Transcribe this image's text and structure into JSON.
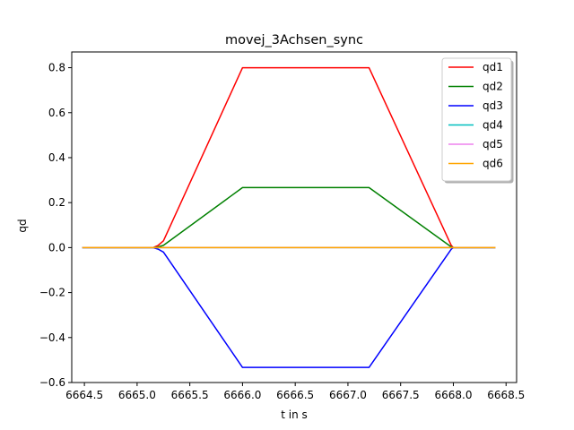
{
  "chart_data": {
    "type": "line",
    "title": "movej_3Achsen_sync",
    "xlabel": "t in s",
    "ylabel": "qd",
    "xlim": [
      6664.38,
      6668.6
    ],
    "ylim": [
      -0.6,
      0.87
    ],
    "xticks": [
      6664.5,
      6665.0,
      6665.5,
      6666.0,
      6666.5,
      6667.0,
      6667.5,
      6668.0,
      6668.5
    ],
    "xtick_labels": [
      "6664.5",
      "6665.0",
      "6665.5",
      "6666.0",
      "6666.5",
      "6667.0",
      "6667.5",
      "6668.0",
      "6668.5"
    ],
    "yticks": [
      -0.6,
      -0.4,
      -0.2,
      0.0,
      0.2,
      0.4,
      0.6,
      0.8
    ],
    "ytick_labels": [
      "−0.6",
      "−0.4",
      "−0.2",
      "0.0",
      "0.2",
      "0.4",
      "0.6",
      "0.8"
    ],
    "grid": false,
    "legend_position": "top-right",
    "series": [
      {
        "name": "qd1",
        "color": "#ff0000",
        "x": [
          6664.48,
          6665.15,
          6665.2,
          6665.25,
          6666.0,
          6667.2,
          6667.98,
          6668.0,
          6668.4
        ],
        "y": [
          0.0,
          0.0,
          0.01,
          0.03,
          0.8,
          0.8,
          0.01,
          0.0,
          0.0
        ]
      },
      {
        "name": "qd2",
        "color": "#008000",
        "x": [
          6664.48,
          6665.15,
          6665.2,
          6665.25,
          6666.0,
          6667.2,
          6667.98,
          6668.0,
          6668.4
        ],
        "y": [
          0.0,
          0.0,
          0.003,
          0.01,
          0.267,
          0.267,
          0.003,
          0.0,
          0.0
        ]
      },
      {
        "name": "qd3",
        "color": "#0000ff",
        "x": [
          6664.48,
          6665.15,
          6665.2,
          6665.25,
          6666.0,
          6667.2,
          6667.98,
          6668.0,
          6668.4
        ],
        "y": [
          0.0,
          0.0,
          -0.007,
          -0.02,
          -0.533,
          -0.533,
          -0.007,
          0.0,
          0.0
        ]
      },
      {
        "name": "qd4",
        "color": "#00bfbf",
        "x": [
          6664.48,
          6668.4
        ],
        "y": [
          0.0,
          0.0
        ]
      },
      {
        "name": "qd5",
        "color": "#ee82ee",
        "x": [
          6664.48,
          6668.4
        ],
        "y": [
          0.0,
          0.0
        ]
      },
      {
        "name": "qd6",
        "color": "#ffa500",
        "x": [
          6664.48,
          6668.4
        ],
        "y": [
          0.0,
          0.0
        ]
      }
    ]
  }
}
